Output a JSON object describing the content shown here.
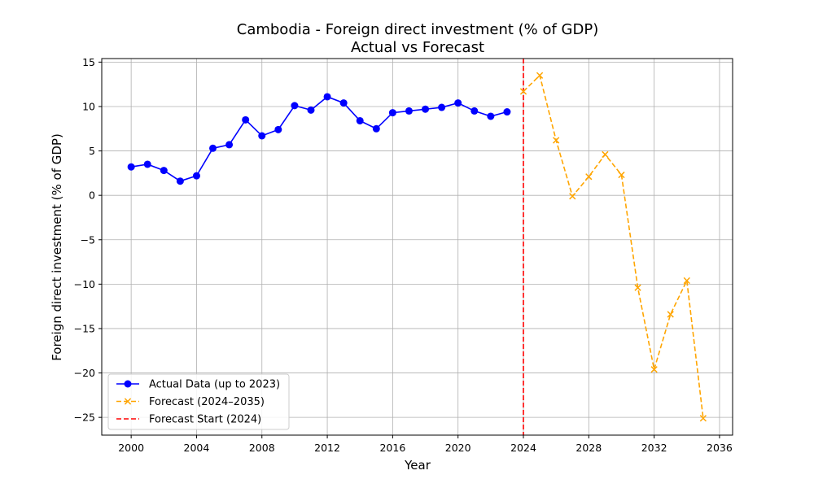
{
  "chart_data": {
    "type": "line",
    "title": "Cambodia - Foreign direct investment (% of GDP)",
    "subtitle": "Actual vs Forecast",
    "xlabel": "Year",
    "ylabel": "Foreign direct investment (% of GDP)",
    "xlim": [
      1998.2,
      2036.8
    ],
    "ylim": [
      -27,
      15.4
    ],
    "xticks": [
      2000,
      2004,
      2008,
      2012,
      2016,
      2020,
      2024,
      2028,
      2032,
      2036
    ],
    "yticks": [
      -25,
      -20,
      -15,
      -10,
      -5,
      0,
      5,
      10,
      15
    ],
    "ytick_labels": [
      "−25",
      "−20",
      "−15",
      "−10",
      "−5",
      "0",
      "5",
      "10",
      "15"
    ],
    "grid": true,
    "legend_position": "lower-left",
    "series": [
      {
        "name": "Actual Data (up to 2023)",
        "color": "#0000ff",
        "line_style": "solid",
        "marker": "circle",
        "x": [
          2000,
          2001,
          2002,
          2003,
          2004,
          2005,
          2006,
          2007,
          2008,
          2009,
          2010,
          2011,
          2012,
          2013,
          2014,
          2015,
          2016,
          2017,
          2018,
          2019,
          2020,
          2021,
          2022,
          2023
        ],
        "y": [
          3.2,
          3.5,
          2.8,
          1.6,
          2.2,
          5.3,
          5.7,
          8.5,
          6.7,
          7.4,
          10.1,
          9.6,
          11.1,
          10.4,
          8.4,
          7.5,
          9.3,
          9.5,
          9.7,
          9.9,
          10.4,
          9.5,
          8.9,
          9.4
        ]
      },
      {
        "name": "Forecast (2024–2035)",
        "color": "#ffa500",
        "line_style": "dashed",
        "marker": "x",
        "x": [
          2024,
          2025,
          2026,
          2027,
          2028,
          2029,
          2030,
          2031,
          2032,
          2033,
          2034,
          2035
        ],
        "y": [
          11.7,
          13.5,
          6.2,
          -0.1,
          2.1,
          4.6,
          2.3,
          -10.4,
          -19.6,
          -13.4,
          -9.6,
          -25.1
        ]
      }
    ],
    "vline": {
      "name": "Forecast Start (2024)",
      "x": 2024,
      "color": "#ff0000",
      "line_style": "dashed"
    }
  }
}
